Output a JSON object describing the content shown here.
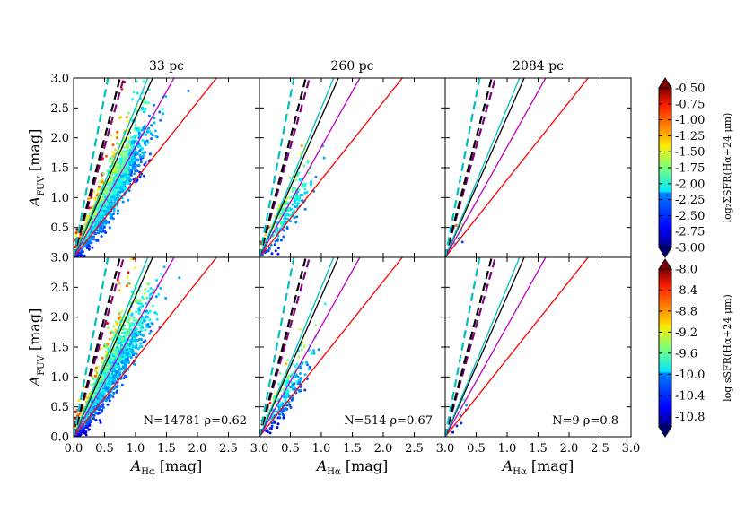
{
  "chart_data": {
    "type": "scatter",
    "layout": "2x3 grid",
    "column_titles": [
      "33 pc",
      "260 pc",
      "2084 pc"
    ],
    "xlabel_main": "A",
    "xlabel_sub": "Hα",
    "xlabel_unit": " [mag]",
    "ylabel_main": "A",
    "ylabel_sub": "FUV",
    "ylabel_unit": " [mag]",
    "xlim": [
      0,
      3
    ],
    "ylim": [
      0,
      3
    ],
    "x_ticks": [
      "0.0",
      "0.5",
      "1.0",
      "1.5",
      "2.0",
      "2.5",
      "3.0"
    ],
    "y_ticks": [
      "0.0",
      "0.5",
      "1.0",
      "1.5",
      "2.0",
      "2.5",
      "3.0"
    ],
    "lines": [
      {
        "slope": 1.3,
        "color": "#ff0000",
        "style": "solid"
      },
      {
        "slope": 1.85,
        "color": "#bf00bf",
        "style": "solid"
      },
      {
        "slope": 2.35,
        "color": "#000000",
        "style": "solid"
      },
      {
        "slope": 2.5,
        "color": "#00bfbf",
        "style": "solid"
      },
      {
        "slope": 3.7,
        "color": "#800080",
        "style": "dashed"
      },
      {
        "slope": 4.0,
        "color": "#000000",
        "style": "dashed"
      },
      {
        "slope": 5.4,
        "color": "#00bfbf",
        "style": "dashed"
      }
    ],
    "panels": [
      {
        "row": 0,
        "col": 0,
        "n": 1400,
        "scale": "sfr",
        "x_mean": 0.6,
        "x_sd": 0.32,
        "ratio": 1.45,
        "ratio_sd": 0.6,
        "annotation": ""
      },
      {
        "row": 0,
        "col": 1,
        "n": 220,
        "scale": "sfr",
        "x_mean": 0.45,
        "x_sd": 0.2,
        "ratio": 1.4,
        "ratio_sd": 0.45,
        "annotation": ""
      },
      {
        "row": 0,
        "col": 2,
        "n": 9,
        "scale": "sfr",
        "x_mean": 0.25,
        "x_sd": 0.06,
        "ratio": 1.4,
        "ratio_sd": 0.2,
        "annotation": ""
      },
      {
        "row": 1,
        "col": 0,
        "n": 1400,
        "scale": "ssfr",
        "x_mean": 0.6,
        "x_sd": 0.32,
        "ratio": 1.45,
        "ratio_sd": 0.6,
        "annotation": "N=14781 ρ=0.62"
      },
      {
        "row": 1,
        "col": 1,
        "n": 220,
        "scale": "ssfr",
        "x_mean": 0.45,
        "x_sd": 0.2,
        "ratio": 1.4,
        "ratio_sd": 0.45,
        "annotation": "N=514 ρ=0.67"
      },
      {
        "row": 1,
        "col": 2,
        "n": 9,
        "scale": "ssfr",
        "x_mean": 0.25,
        "x_sd": 0.06,
        "ratio": 1.4,
        "ratio_sd": 0.2,
        "annotation": "N=9 ρ=0.8"
      }
    ],
    "colorbars": [
      {
        "id": "sfr",
        "label": "log₂ΣSFR(Hα+24 μm)",
        "min": -3.0,
        "max": -0.5,
        "ticks": [
          "-0.50",
          "-0.75",
          "-1.00",
          "-1.25",
          "-1.50",
          "-1.75",
          "-2.00",
          "-2.25",
          "-2.50",
          "-2.75",
          "-3.00"
        ]
      },
      {
        "id": "ssfr",
        "label": "log sSFR(Hα+24 μm)",
        "min": -11.0,
        "max": -8.0,
        "ticks": [
          "-8.0",
          "-8.4",
          "-8.8",
          "-9.2",
          "-9.6",
          "-10.0",
          "-10.4",
          "-10.8"
        ]
      }
    ]
  }
}
